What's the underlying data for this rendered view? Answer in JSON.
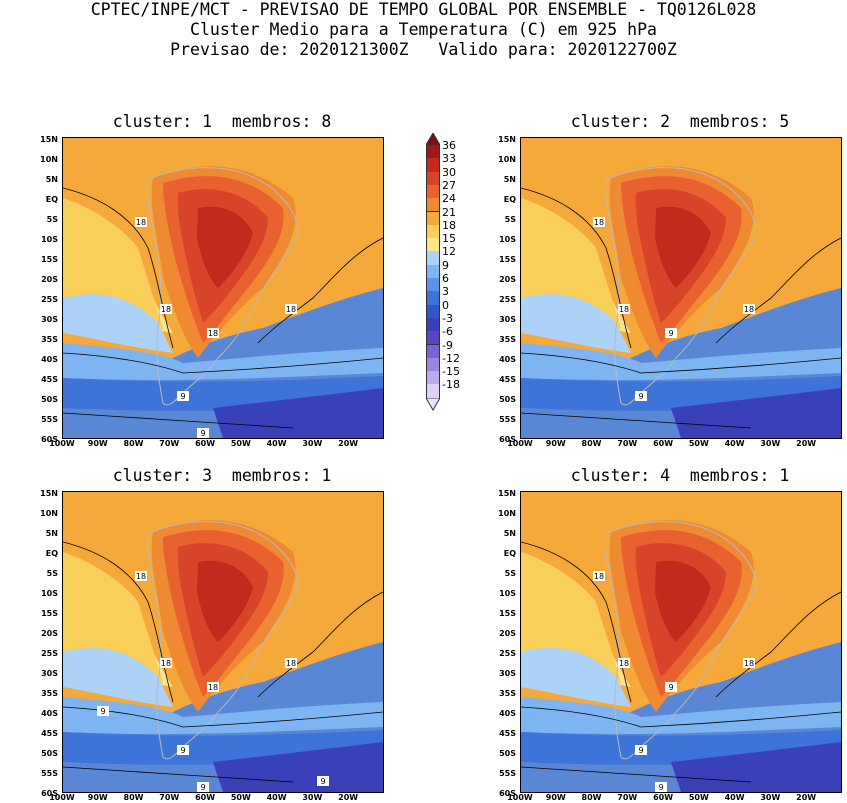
{
  "header": {
    "line1": "CPTEC/INPE/MCT - PREVISAO DE TEMPO GLOBAL POR ENSEMBLE - TQ0126L028",
    "line2": "Cluster Medio para a Temperatura (C) em 925 hPa",
    "line3": "Previsao de: 2020121300Z   Valido para: 2020122700Z"
  },
  "panels": [
    {
      "title": "cluster: 1  membros: 8",
      "labels": [
        "18",
        "18",
        "18",
        "18",
        "9",
        "9"
      ]
    },
    {
      "title": "cluster: 2  membros: 5",
      "labels": [
        "18",
        "18",
        "18",
        "9",
        "9"
      ]
    },
    {
      "title": "cluster: 3  membros: 1",
      "labels": [
        "18",
        "18",
        "18",
        "18",
        "9",
        "9",
        "9",
        "9"
      ]
    },
    {
      "title": "cluster: 4  membros: 1",
      "labels": [
        "18",
        "18",
        "18",
        "9",
        "9",
        "9"
      ]
    }
  ],
  "y_ticks": [
    "15N",
    "10N",
    "5N",
    "EQ",
    "5S",
    "10S",
    "15S",
    "20S",
    "25S",
    "30S",
    "35S",
    "40S",
    "45S",
    "50S",
    "55S",
    "60S"
  ],
  "x_ticks": [
    "100W",
    "90W",
    "80W",
    "70W",
    "60W",
    "50W",
    "40W",
    "30W",
    "20W"
  ],
  "colorbar": {
    "labels": [
      "36",
      "33",
      "30",
      "27",
      "24",
      "21",
      "18",
      "15",
      "12",
      "9",
      "6",
      "3",
      "0",
      "-3",
      "-6",
      "-9",
      "-12",
      "-15",
      "-18"
    ],
    "colors": [
      "#9e1a1a",
      "#c22a1e",
      "#d8442a",
      "#e8612f",
      "#f08a32",
      "#f4a93a",
      "#f8cf58",
      "#fbe58c",
      "#acd2f8",
      "#7fb4f2",
      "#5a94ea",
      "#3e74d8",
      "#2f58c6",
      "#3a40b8",
      "#5a44c4",
      "#7a62d4",
      "#9a86e0",
      "#bcaaee",
      "#dcd0f8"
    ],
    "top_arrow_color": "#7a1010",
    "bottom_arrow_color": "#ece4fc"
  }
}
